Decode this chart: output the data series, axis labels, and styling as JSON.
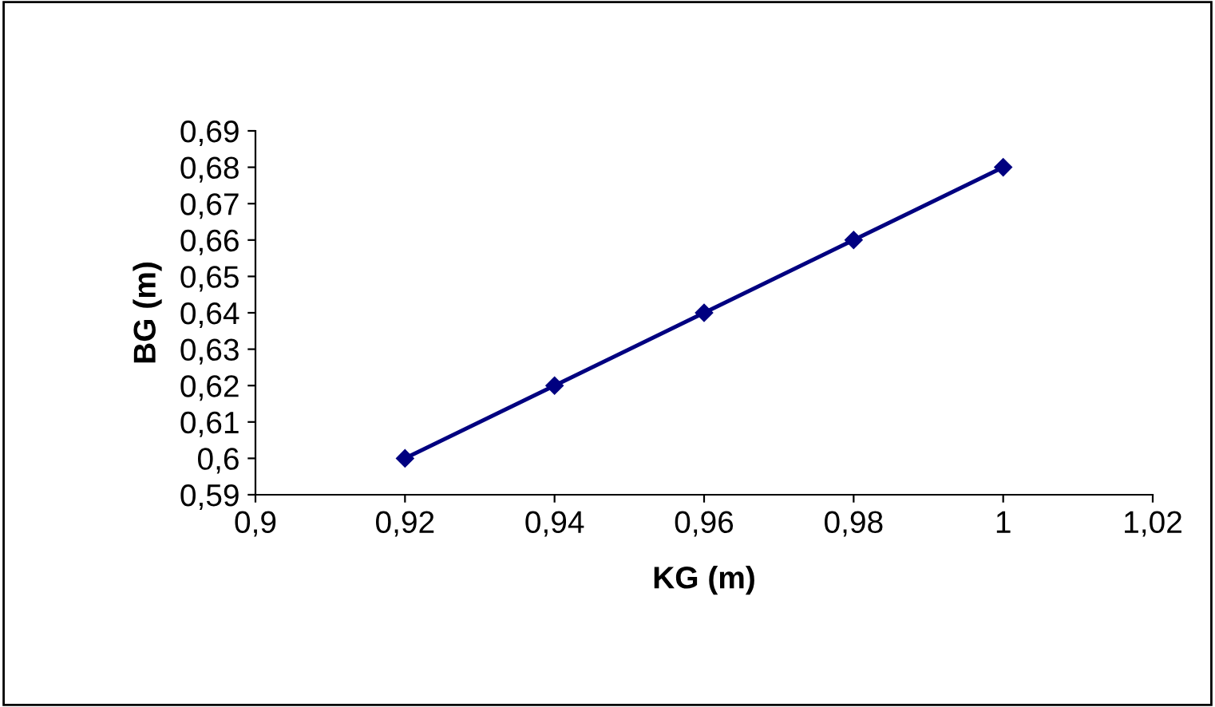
{
  "chart_data": {
    "type": "line",
    "xlabel": "KG (m)",
    "ylabel": "BG (m)",
    "x": [
      0.92,
      0.94,
      0.96,
      0.98,
      1.0
    ],
    "series": [
      {
        "color": "#000080",
        "values": [
          0.6,
          0.62,
          0.64,
          0.66,
          0.68
        ]
      }
    ],
    "marker": "diamond",
    "line_style": "solid",
    "grid": false,
    "legend": false,
    "xlim": [
      0.9,
      1.02
    ],
    "xticks": [
      {
        "value": 0.9,
        "label": "0,9"
      },
      {
        "value": 0.92,
        "label": "0,92"
      },
      {
        "value": 0.94,
        "label": "0,94"
      },
      {
        "value": 0.96,
        "label": "0,96"
      },
      {
        "value": 0.98,
        "label": "0,98"
      },
      {
        "value": 1.0,
        "label": "1"
      },
      {
        "value": 1.02,
        "label": "1,02"
      }
    ],
    "ylim": [
      0.59,
      0.69
    ],
    "yticks": [
      {
        "value": 0.59,
        "label": "0,59"
      },
      {
        "value": 0.6,
        "label": "0,6"
      },
      {
        "value": 0.61,
        "label": "0,61"
      },
      {
        "value": 0.62,
        "label": "0,62"
      },
      {
        "value": 0.63,
        "label": "0,63"
      },
      {
        "value": 0.64,
        "label": "0,64"
      },
      {
        "value": 0.65,
        "label": "0,65"
      },
      {
        "value": 0.66,
        "label": "0,66"
      },
      {
        "value": 0.67,
        "label": "0,67"
      },
      {
        "value": 0.68,
        "label": "0,68"
      },
      {
        "value": 0.69,
        "label": "0,69"
      }
    ]
  }
}
